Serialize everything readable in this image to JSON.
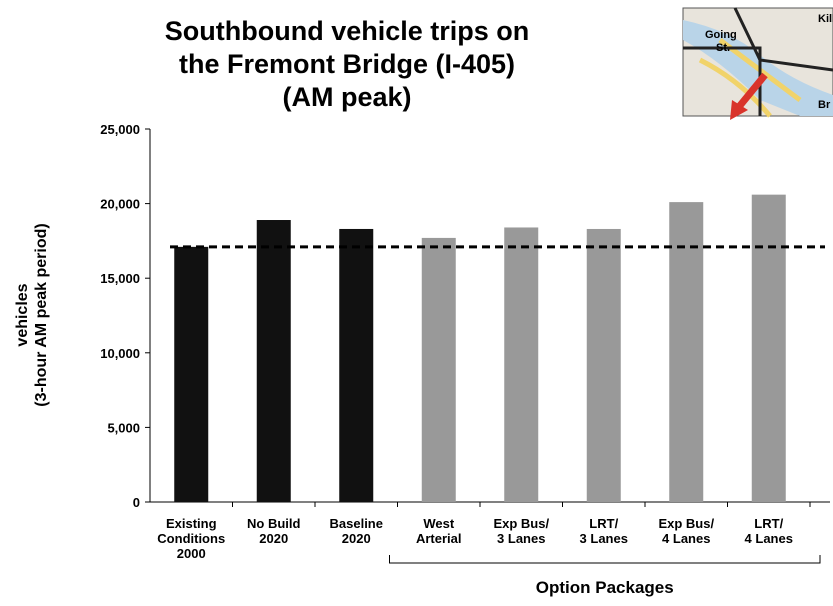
{
  "chart_data": {
    "type": "bar",
    "title": [
      "Southbound vehicle trips on",
      "the Fremont Bridge (I-405)",
      "(AM peak)"
    ],
    "y_label": [
      "vehicles",
      "(3-hour AM peak period)"
    ],
    "categories": [
      [
        "Existing",
        "Conditions",
        "2000"
      ],
      [
        "No Build",
        "2020"
      ],
      [
        "Baseline",
        "2020"
      ],
      [
        "West",
        "Arterial"
      ],
      [
        "Exp Bus/",
        "3 Lanes"
      ],
      [
        "LRT/",
        "3 Lanes"
      ],
      [
        "Exp Bus/",
        "4 Lanes"
      ],
      [
        "LRT/",
        "4 Lanes"
      ]
    ],
    "values": [
      17100,
      18900,
      18300,
      17700,
      18400,
      18300,
      20100,
      20600
    ],
    "colors": [
      "#111111",
      "#111111",
      "#111111",
      "#999999",
      "#999999",
      "#999999",
      "#999999",
      "#999999"
    ],
    "reference_line": 17100,
    "group_label": "Option Packages",
    "ylim": [
      0,
      25000
    ],
    "yticks": [
      0,
      {
        "value": 5000,
        "label": "5,000"
      },
      {
        "value": 10000,
        "label": "10,000"
      },
      {
        "value": 15000,
        "label": "15,000"
      },
      {
        "value": 20000,
        "label": "20,000"
      },
      {
        "value": 25000,
        "label": "25,000"
      }
    ],
    "grid": false,
    "inset_labels": [
      "Going",
      "St.",
      "Kill",
      "Br"
    ]
  }
}
